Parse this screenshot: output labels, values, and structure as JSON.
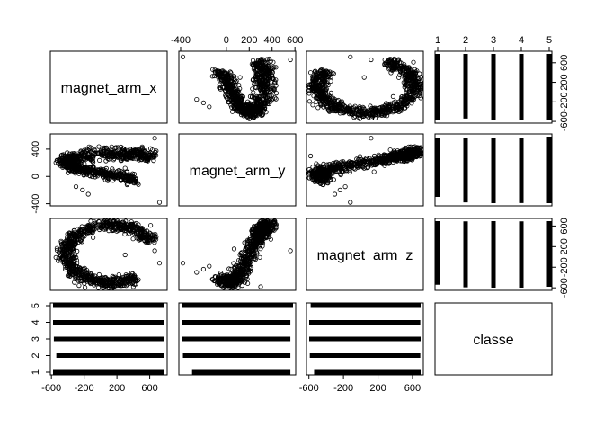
{
  "chart_data": {
    "type": "scatter",
    "matrix_type": "pairs",
    "variables": [
      "magnet_arm_x",
      "magnet_arm_y",
      "magnet_arm_z",
      "classe"
    ],
    "ranges": {
      "magnet_arm_x": [
        -580,
        780
      ],
      "magnet_arm_y": [
        -392,
        583
      ],
      "magnet_arm_z": [
        -597,
        694
      ],
      "classe": [
        1,
        5
      ]
    },
    "ticks": {
      "magnet_arm_x": {
        "values": [
          -600,
          -200,
          200,
          600
        ],
        "labels": [
          "-600",
          "-200",
          "200",
          "600"
        ]
      },
      "magnet_arm_y": {
        "values": [
          -400,
          0,
          200,
          400,
          600
        ],
        "labels": [
          "-400",
          "0",
          "200",
          "400",
          "600"
        ]
      },
      "magnet_arm_z": {
        "values": [
          -600,
          -200,
          200,
          600
        ],
        "labels": [
          "-600",
          "-200",
          "200",
          "600"
        ]
      },
      "classe": {
        "values": [
          1,
          2,
          3,
          4,
          5
        ],
        "labels": [
          "1",
          "2",
          "3",
          "4",
          "5"
        ]
      }
    },
    "side_ticks": {
      "magnet_arm_y_left": {
        "values": [
          -400,
          0,
          400
        ],
        "labels": [
          "-400",
          "0",
          "400"
        ]
      },
      "magnet_arm_z_right": {
        "values": [
          -600,
          -200,
          200,
          600
        ],
        "labels": [
          "-600",
          "-200",
          "200",
          "600"
        ]
      },
      "classe_right": {
        "values": [
          1,
          2,
          3,
          4,
          5
        ],
        "labels": [
          "1",
          "2",
          "3",
          "4",
          "5"
        ]
      },
      "magnet_arm_x_right": {
        "values": [
          -600,
          -200,
          200,
          600
        ],
        "labels": [
          "-600",
          "-200",
          "200",
          "600"
        ]
      }
    },
    "class_ranges": {
      "magnet_arm_x": [
        [
          -580,
          780
        ],
        [
          -540,
          780
        ],
        [
          -570,
          780
        ],
        [
          -580,
          780
        ],
        [
          -580,
          780
        ]
      ],
      "magnet_arm_y": [
        [
          -300,
          560
        ],
        [
          -380,
          560
        ],
        [
          -392,
          560
        ],
        [
          -390,
          560
        ],
        [
          -392,
          583
        ]
      ],
      "magnet_arm_z": [
        [
          -540,
          694
        ],
        [
          -590,
          690
        ],
        [
          -597,
          694
        ],
        [
          -597,
          690
        ],
        [
          -580,
          694
        ]
      ]
    },
    "marker": "open-circle",
    "grid": false,
    "legend": "none"
  }
}
